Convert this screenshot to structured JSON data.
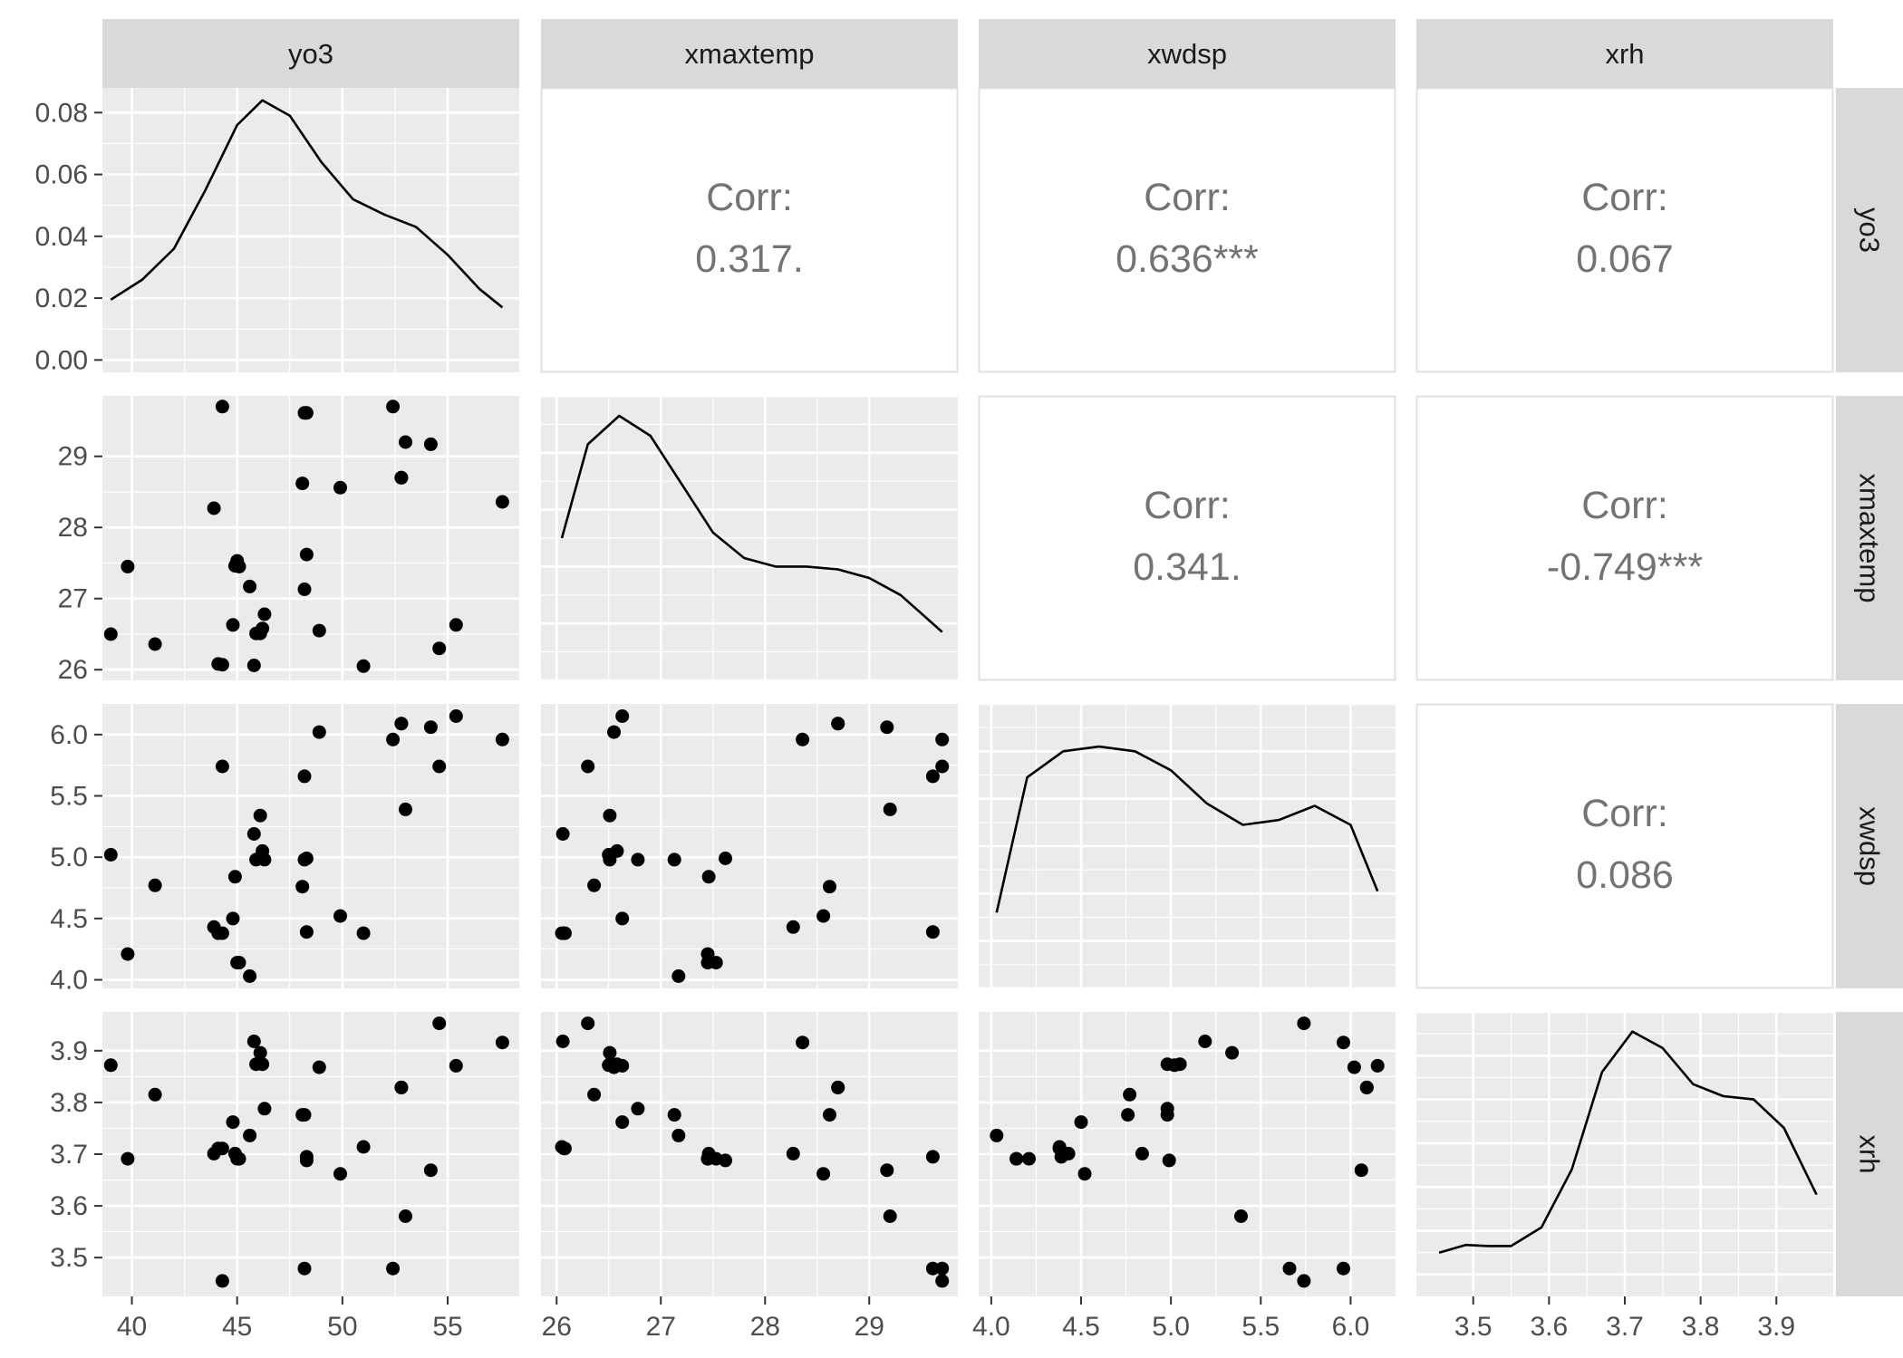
{
  "chart_data": {
    "type": "scatter",
    "variables": [
      "yo3",
      "xmaxtemp",
      "xwdsp",
      "xrh"
    ],
    "column_labels": [
      "yo3",
      "xmaxtemp",
      "xwdsp",
      "xrh"
    ],
    "row_labels": [
      "yo3",
      "xmaxtemp",
      "xwdsp",
      "xrh"
    ],
    "corr_label": "Corr:",
    "correlations": [
      {
        "row": 0,
        "col": 1,
        "pair": [
          "yo3",
          "xmaxtemp"
        ],
        "value": "0.317."
      },
      {
        "row": 0,
        "col": 2,
        "pair": [
          "yo3",
          "xwdsp"
        ],
        "value": "0.636***"
      },
      {
        "row": 0,
        "col": 3,
        "pair": [
          "yo3",
          "xrh"
        ],
        "value": "0.067"
      },
      {
        "row": 1,
        "col": 2,
        "pair": [
          "xmaxtemp",
          "xwdsp"
        ],
        "value": "0.341."
      },
      {
        "row": 1,
        "col": 3,
        "pair": [
          "xmaxtemp",
          "xrh"
        ],
        "value": "-0.749***"
      },
      {
        "row": 2,
        "col": 3,
        "pair": [
          "xwdsp",
          "xrh"
        ],
        "value": "0.086"
      }
    ],
    "x_axes": [
      {
        "variable": "yo3",
        "range": [
          38.6,
          58.4
        ],
        "ticks": [
          40,
          45,
          50,
          55
        ],
        "tick_labels": [
          "40",
          "45",
          "50",
          "55"
        ]
      },
      {
        "variable": "xmaxtemp",
        "range": [
          25.85,
          29.85
        ],
        "ticks": [
          26,
          27,
          28,
          29
        ],
        "tick_labels": [
          "26",
          "27",
          "28",
          "29"
        ]
      },
      {
        "variable": "xwdsp",
        "range": [
          3.93,
          6.25
        ],
        "ticks": [
          4.0,
          4.5,
          5.0,
          5.5,
          6.0
        ],
        "tick_labels": [
          "4.0",
          "4.5",
          "5.0",
          "5.5",
          "6.0"
        ]
      },
      {
        "variable": "xrh",
        "range": [
          3.425,
          3.975
        ],
        "ticks": [
          3.5,
          3.6,
          3.7,
          3.8,
          3.9
        ],
        "tick_labels": [
          "3.5",
          "3.6",
          "3.7",
          "3.8",
          "3.9"
        ]
      }
    ],
    "y_axes": [
      {
        "row": "yo3",
        "quantity": "density",
        "range": [
          -0.004,
          0.088
        ],
        "ticks": [
          0.0,
          0.02,
          0.04,
          0.06,
          0.08
        ],
        "tick_labels": [
          "0.00",
          "0.02",
          "0.04",
          "0.06",
          "0.08"
        ]
      },
      {
        "row": "xmaxtemp",
        "range": [
          25.85,
          29.85
        ],
        "ticks": [
          26,
          27,
          28,
          29
        ],
        "tick_labels": [
          "26",
          "27",
          "28",
          "29"
        ]
      },
      {
        "row": "xwdsp",
        "range": [
          3.93,
          6.25
        ],
        "ticks": [
          4.0,
          4.5,
          5.0,
          5.5,
          6.0
        ],
        "tick_labels": [
          "4.0",
          "4.5",
          "5.0",
          "5.5",
          "6.0"
        ]
      },
      {
        "row": "xrh",
        "range": [
          3.425,
          3.975
        ],
        "ticks": [
          3.5,
          3.6,
          3.7,
          3.8,
          3.9
        ],
        "tick_labels": [
          "3.5",
          "3.6",
          "3.7",
          "3.8",
          "3.9"
        ]
      }
    ],
    "observations": {
      "yo3": [
        39.0,
        39.8,
        41.1,
        43.9,
        44.1,
        44.3,
        44.3,
        44.8,
        44.9,
        45.0,
        45.1,
        45.6,
        45.8,
        46.1,
        46.2,
        46.3,
        48.1,
        48.2,
        48.3,
        48.3,
        48.9,
        49.9,
        51.0,
        52.4,
        52.8,
        52.8,
        53.0,
        54.2,
        54.6,
        55.4,
        57.6,
        45.9,
        48.2
      ],
      "xmaxtemp": [
        26.5,
        27.45,
        26.36,
        28.27,
        26.08,
        29.7,
        26.07,
        26.63,
        27.46,
        27.53,
        27.45,
        27.17,
        26.06,
        26.51,
        26.58,
        26.78,
        28.62,
        29.61,
        29.61,
        27.62,
        26.55,
        28.56,
        26.05,
        29.7,
        28.7,
        28.7,
        29.2,
        29.17,
        26.3,
        26.63,
        28.36,
        26.51,
        27.13
      ],
      "xwdsp": [
        5.02,
        4.21,
        4.77,
        4.43,
        4.38,
        5.74,
        4.38,
        4.5,
        4.84,
        4.14,
        4.14,
        4.03,
        5.19,
        5.34,
        5.05,
        4.98,
        4.76,
        5.66,
        4.39,
        4.99,
        6.02,
        4.52,
        4.38,
        5.96,
        6.09,
        6.09,
        5.39,
        6.06,
        5.74,
        6.15,
        5.96,
        4.98,
        4.98
      ],
      "xrh": [
        3.872,
        3.691,
        3.815,
        3.701,
        3.711,
        3.455,
        3.711,
        3.762,
        3.701,
        3.691,
        3.691,
        3.736,
        3.918,
        3.896,
        3.874,
        3.788,
        3.776,
        3.479,
        3.695,
        3.688,
        3.868,
        3.662,
        3.714,
        3.479,
        3.829,
        3.829,
        3.58,
        3.669,
        3.953,
        3.871,
        3.916,
        3.874,
        3.776
      ]
    },
    "density_curves": {
      "yo3": {
        "x": [
          39.0,
          40.5,
          42.0,
          43.5,
          45.0,
          46.2,
          47.5,
          49.0,
          50.5,
          52.0,
          53.5,
          55.0,
          56.5,
          57.6
        ],
        "y": [
          0.0195,
          0.026,
          0.036,
          0.055,
          0.076,
          0.084,
          0.079,
          0.064,
          0.052,
          0.047,
          0.043,
          0.034,
          0.023,
          0.017
        ]
      },
      "xmaxtemp": {
        "x": [
          26.05,
          26.3,
          26.6,
          26.9,
          27.2,
          27.5,
          27.8,
          28.1,
          28.4,
          28.7,
          29.0,
          29.3,
          29.7
        ],
        "y": [
          0.5,
          0.83,
          0.93,
          0.86,
          0.69,
          0.52,
          0.43,
          0.4,
          0.4,
          0.39,
          0.36,
          0.3,
          0.17
        ]
      },
      "xwdsp": {
        "x": [
          4.03,
          4.2,
          4.4,
          4.6,
          4.8,
          5.0,
          5.2,
          5.4,
          5.6,
          5.8,
          6.0,
          6.15
        ],
        "y": [
          0.12,
          0.69,
          0.8,
          0.82,
          0.8,
          0.72,
          0.58,
          0.49,
          0.51,
          0.57,
          0.49,
          0.21
        ]
      },
      "xrh": {
        "x": [
          3.455,
          3.49,
          3.52,
          3.55,
          3.59,
          3.63,
          3.67,
          3.71,
          3.75,
          3.79,
          3.83,
          3.87,
          3.91,
          3.953
        ],
        "y": [
          0.2,
          0.27,
          0.26,
          0.26,
          0.43,
          0.96,
          1.85,
          2.22,
          2.07,
          1.74,
          1.63,
          1.6,
          1.34,
          0.73
        ]
      }
    },
    "density_ylim_relative": {
      "xmaxtemp": [
        0.0,
        1.0
      ],
      "xwdsp": [
        -0.2,
        1.0
      ],
      "xrh": [
        -0.2,
        2.4
      ]
    },
    "grid": true
  }
}
